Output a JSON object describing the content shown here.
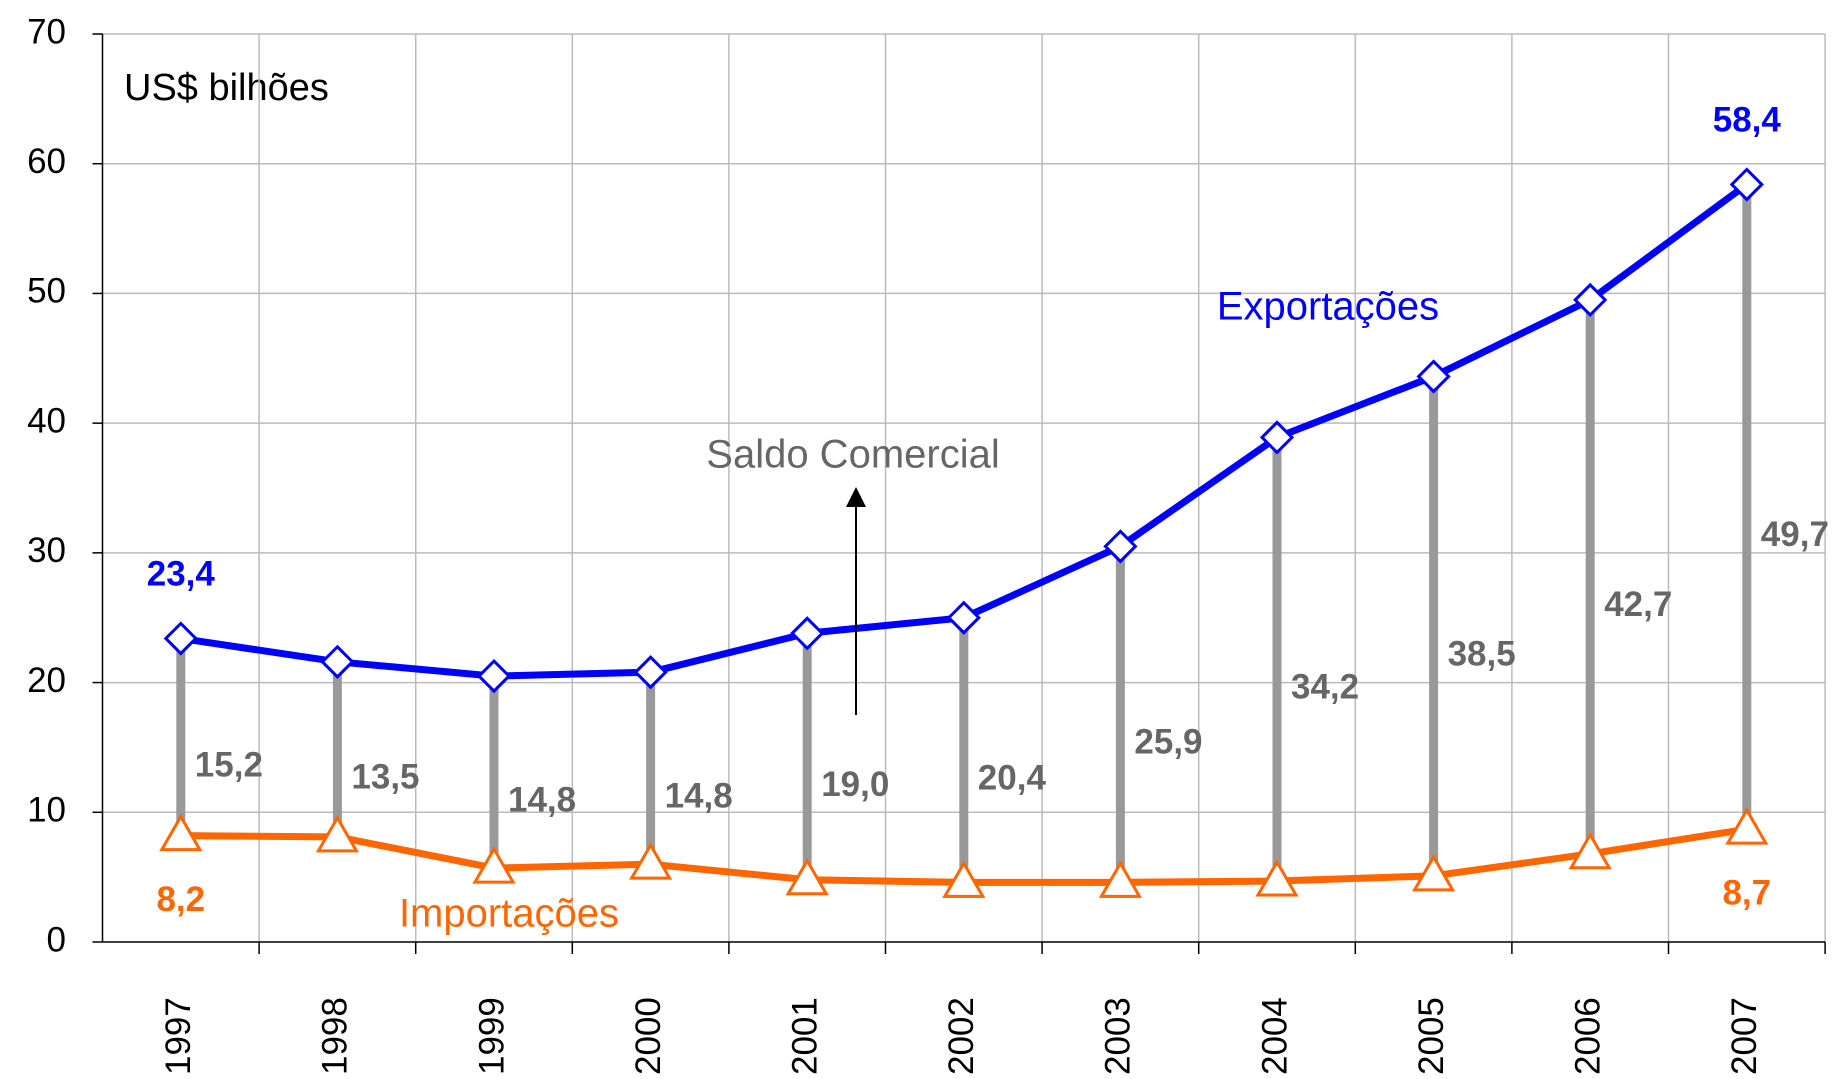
{
  "chart_data": {
    "type": "line",
    "y_axis_label": "US$ bilhões",
    "categories": [
      "1997",
      "1998",
      "1999",
      "2000",
      "2001",
      "2002",
      "2003",
      "2004",
      "2005",
      "2006",
      "2007"
    ],
    "series": [
      {
        "name": "Exportações",
        "color": "#0000ff",
        "marker": "diamond",
        "values": [
          23.4,
          21.6,
          20.5,
          20.8,
          23.8,
          25.0,
          30.5,
          38.9,
          43.6,
          49.5,
          58.4
        ],
        "value_labels": [
          "23,4",
          null,
          null,
          null,
          null,
          null,
          null,
          null,
          null,
          null,
          "58,4"
        ]
      },
      {
        "name": "Importações",
        "color": "#ff6600",
        "marker": "triangle",
        "values": [
          8.2,
          8.1,
          5.7,
          6.0,
          4.8,
          4.6,
          4.6,
          4.7,
          5.1,
          6.8,
          8.7
        ],
        "value_labels": [
          "8,2",
          null,
          null,
          null,
          null,
          null,
          null,
          null,
          null,
          null,
          "8,7"
        ]
      },
      {
        "name": "Saldo Comercial",
        "color": "#999999",
        "values": [
          15.2,
          13.5,
          14.8,
          14.8,
          19.0,
          20.4,
          25.9,
          34.2,
          38.5,
          42.7,
          49.7
        ],
        "value_labels": [
          "15,2",
          "13,5",
          "14,8",
          "14,8",
          "19,0",
          "20,4",
          "25,9",
          "34,2",
          "38,5",
          "42,7",
          "49,7"
        ]
      }
    ],
    "ylim": [
      0,
      70
    ],
    "yticks": [
      0,
      10,
      20,
      30,
      40,
      50,
      60,
      70
    ],
    "grid": true
  }
}
